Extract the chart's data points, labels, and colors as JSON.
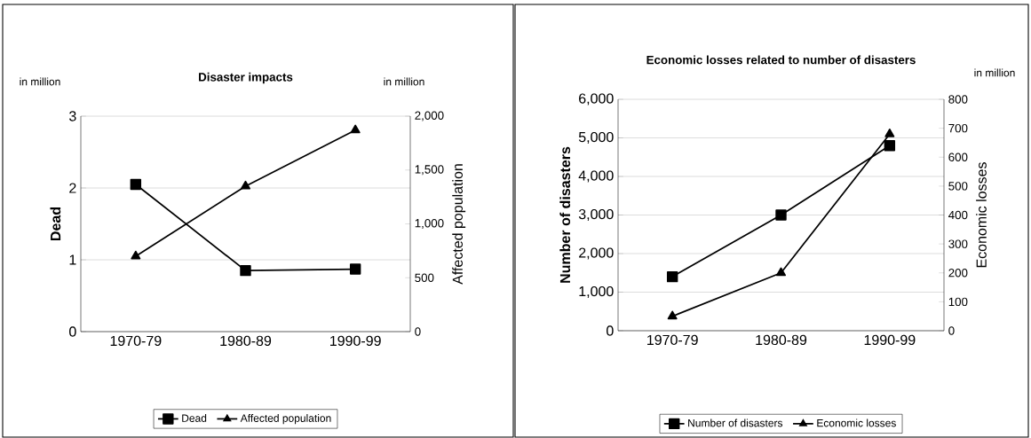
{
  "chart_data": [
    {
      "type": "line",
      "title": "Disaster impacts",
      "categories": [
        "1970-79",
        "1980-89",
        "1990-99"
      ],
      "ylabel": "Dead",
      "y2label": "Affected population",
      "series": [
        {
          "name": "Dead",
          "color": "#000000",
          "marker": "square",
          "values": [
            2.05,
            0.85,
            0.87
          ]
        },
        {
          "name": "Affected population",
          "color": "#000000",
          "marker": "triangle",
          "axis": "y2",
          "values": [
            700,
            1350,
            1870
          ]
        }
      ],
      "ylim": [
        0,
        3
      ],
      "yticks": [
        0,
        1,
        2,
        3
      ],
      "y2lim": [
        0,
        2000
      ],
      "y2ticks": [
        0,
        500,
        {
          "value": 1000,
          "label": "1,000"
        },
        {
          "value": 1500,
          "label": "1,500"
        },
        {
          "value": 2000,
          "label": "2,000"
        }
      ],
      "annotations": [
        "in million",
        "in million"
      ],
      "grid": "y",
      "legend": "bottom"
    },
    {
      "type": "line",
      "title": "Economic losses related to number of disasters",
      "categories": [
        "1970-79",
        "1980-89",
        "1990-99"
      ],
      "ylabel": "Number of disasters",
      "y2label": "Economic losses",
      "series": [
        {
          "name": "Number of disasters",
          "color": "#000000",
          "marker": "square",
          "values": [
            1400,
            3000,
            4800
          ]
        },
        {
          "name": "Economic losses",
          "color": "#000000",
          "marker": "triangle",
          "axis": "y2",
          "values": [
            50,
            200,
            680
          ]
        }
      ],
      "ylim": [
        0,
        6000
      ],
      "yticks": [
        0,
        {
          "value": 1000,
          "label": "1,000"
        },
        {
          "value": 2000,
          "label": "2,000"
        },
        {
          "value": 3000,
          "label": "3,000"
        },
        {
          "value": 4000,
          "label": "4,000"
        },
        {
          "value": 5000,
          "label": "5,000"
        },
        {
          "value": 6000,
          "label": "6,000"
        }
      ],
      "y2lim": [
        0,
        800
      ],
      "y2ticks": [
        0,
        100,
        200,
        300,
        400,
        500,
        600,
        700,
        800
      ],
      "annotations": [
        "in million"
      ],
      "grid": "y",
      "legend": "bottom"
    }
  ]
}
